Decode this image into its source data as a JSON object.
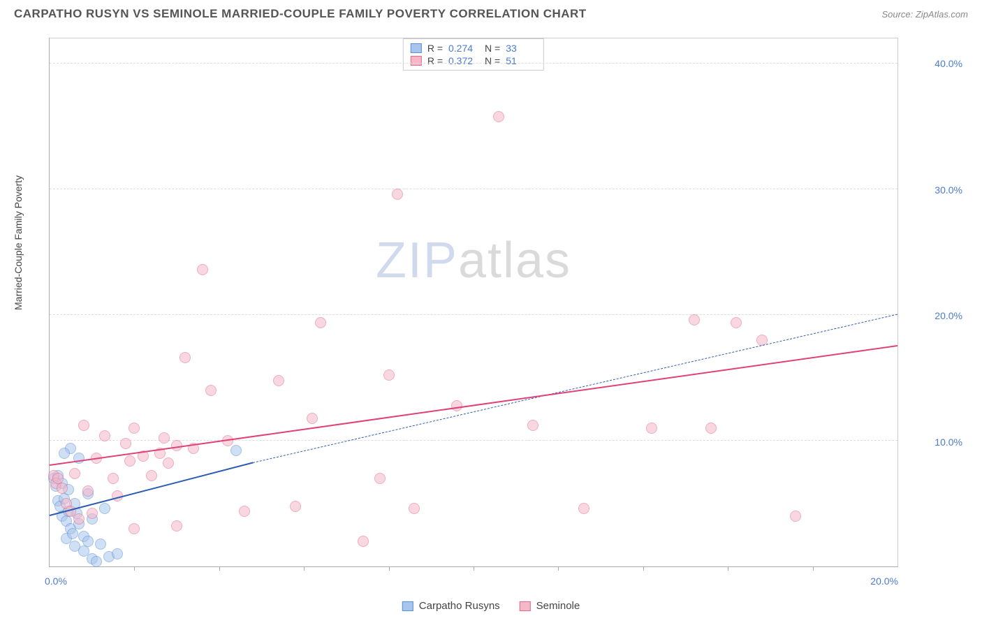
{
  "header": {
    "title": "CARPATHO RUSYN VS SEMINOLE MARRIED-COUPLE FAMILY POVERTY CORRELATION CHART",
    "source_prefix": "Source: ",
    "source_name": "ZipAtlas.com"
  },
  "chart": {
    "type": "scatter",
    "yaxis_label": "Married-Couple Family Poverty",
    "xlim": [
      0,
      20
    ],
    "ylim": [
      0,
      42
    ],
    "yticks": [
      {
        "v": 10,
        "label": "10.0%"
      },
      {
        "v": 20,
        "label": "20.0%"
      },
      {
        "v": 30,
        "label": "30.0%"
      },
      {
        "v": 40,
        "label": "40.0%"
      }
    ],
    "xticks_minor": [
      2,
      4,
      6,
      8,
      10,
      12,
      14,
      16,
      18
    ],
    "xtick_left": {
      "v": 0,
      "label": "0.0%"
    },
    "xtick_right": {
      "v": 20,
      "label": "20.0%"
    },
    "background_color": "#ffffff",
    "grid_color": "#dddddd",
    "marker_radius": 8,
    "marker_opacity": 0.55,
    "series": [
      {
        "key": "carpatho",
        "label": "Carpatho Rusyns",
        "color_fill": "#a8c5ec",
        "color_stroke": "#5b8fd6",
        "trend_color": "#2d5db3",
        "stats": {
          "r": "0.274",
          "n": "33"
        },
        "trend": {
          "x1": 0.0,
          "y1": 4.0,
          "x2": 4.8,
          "y2": 8.2,
          "dash_x2": 20.0,
          "dash_y2": 20.0
        },
        "points": [
          [
            0.1,
            7.0
          ],
          [
            0.15,
            6.4
          ],
          [
            0.2,
            7.2
          ],
          [
            0.2,
            5.2
          ],
          [
            0.25,
            4.8
          ],
          [
            0.3,
            6.6
          ],
          [
            0.3,
            4.0
          ],
          [
            0.35,
            5.4
          ],
          [
            0.4,
            3.6
          ],
          [
            0.4,
            2.2
          ],
          [
            0.45,
            6.1
          ],
          [
            0.45,
            4.4
          ],
          [
            0.5,
            9.4
          ],
          [
            0.5,
            3.0
          ],
          [
            0.55,
            2.6
          ],
          [
            0.6,
            5.0
          ],
          [
            0.6,
            1.6
          ],
          [
            0.65,
            4.2
          ],
          [
            0.7,
            8.6
          ],
          [
            0.7,
            3.4
          ],
          [
            0.8,
            2.4
          ],
          [
            0.8,
            1.2
          ],
          [
            0.9,
            5.8
          ],
          [
            0.9,
            2.0
          ],
          [
            1.0,
            0.6
          ],
          [
            1.0,
            3.8
          ],
          [
            1.1,
            0.4
          ],
          [
            1.2,
            1.8
          ],
          [
            1.3,
            4.6
          ],
          [
            1.4,
            0.8
          ],
          [
            1.6,
            1.0
          ],
          [
            4.4,
            9.2
          ],
          [
            0.35,
            9.0
          ]
        ]
      },
      {
        "key": "seminole",
        "label": "Seminole",
        "color_fill": "#f5b8c8",
        "color_stroke": "#e26a8d",
        "trend_color": "#e04177",
        "stats": {
          "r": "0.372",
          "n": "51"
        },
        "trend": {
          "x1": 0.0,
          "y1": 8.0,
          "x2": 20.0,
          "y2": 17.5
        },
        "points": [
          [
            0.1,
            7.2
          ],
          [
            0.15,
            6.6
          ],
          [
            0.2,
            7.0
          ],
          [
            0.3,
            6.2
          ],
          [
            0.4,
            5.0
          ],
          [
            0.5,
            4.4
          ],
          [
            0.6,
            7.4
          ],
          [
            0.7,
            3.8
          ],
          [
            0.8,
            11.2
          ],
          [
            0.9,
            6.0
          ],
          [
            1.0,
            4.2
          ],
          [
            1.1,
            8.6
          ],
          [
            1.3,
            10.4
          ],
          [
            1.5,
            7.0
          ],
          [
            1.6,
            5.6
          ],
          [
            1.8,
            9.8
          ],
          [
            1.9,
            8.4
          ],
          [
            2.0,
            11.0
          ],
          [
            2.2,
            8.8
          ],
          [
            2.4,
            7.2
          ],
          [
            2.6,
            9.0
          ],
          [
            2.7,
            10.2
          ],
          [
            2.8,
            8.2
          ],
          [
            3.0,
            9.6
          ],
          [
            3.2,
            16.6
          ],
          [
            3.4,
            9.4
          ],
          [
            3.6,
            23.6
          ],
          [
            3.8,
            14.0
          ],
          [
            4.2,
            10.0
          ],
          [
            4.6,
            4.4
          ],
          [
            5.4,
            14.8
          ],
          [
            5.8,
            4.8
          ],
          [
            6.2,
            11.8
          ],
          [
            6.4,
            19.4
          ],
          [
            7.4,
            2.0
          ],
          [
            7.8,
            7.0
          ],
          [
            8.0,
            15.2
          ],
          [
            8.2,
            29.6
          ],
          [
            8.6,
            4.6
          ],
          [
            9.6,
            12.8
          ],
          [
            10.6,
            35.8
          ],
          [
            11.4,
            11.2
          ],
          [
            12.6,
            4.6
          ],
          [
            14.2,
            11.0
          ],
          [
            15.2,
            19.6
          ],
          [
            15.6,
            11.0
          ],
          [
            16.2,
            19.4
          ],
          [
            16.8,
            18.0
          ],
          [
            17.6,
            4.0
          ],
          [
            2.0,
            3.0
          ],
          [
            3.0,
            3.2
          ]
        ]
      }
    ],
    "stats_box": {
      "r_label": "R =",
      "n_label": "N ="
    },
    "watermark": {
      "zip": "ZIP",
      "atlas": "atlas"
    }
  },
  "legend": {
    "items": [
      {
        "key": "carpatho",
        "label": "Carpatho Rusyns"
      },
      {
        "key": "seminole",
        "label": "Seminole"
      }
    ]
  }
}
